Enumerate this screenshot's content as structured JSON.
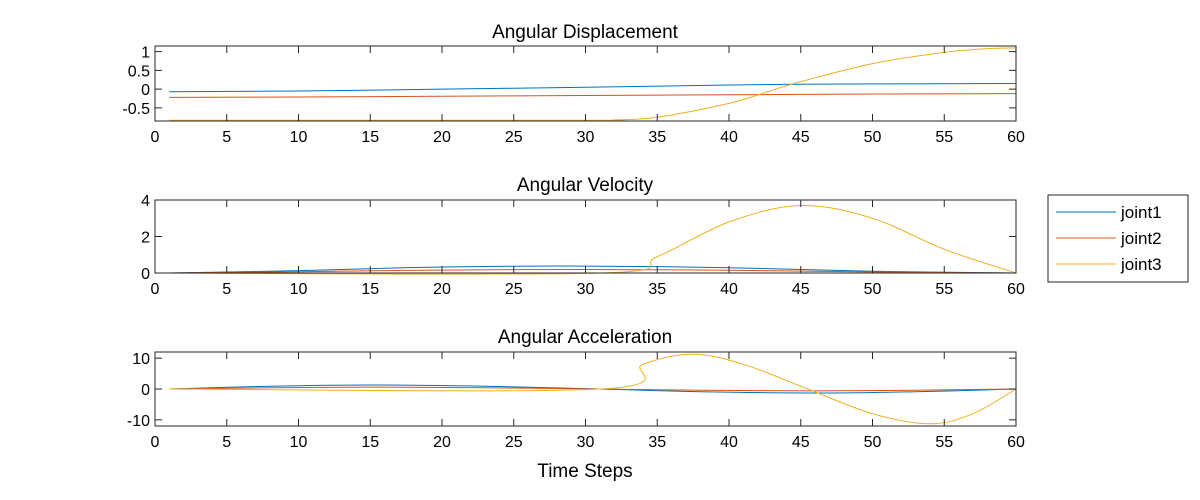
{
  "chart_data": [
    {
      "type": "line",
      "title": "Angular Displacement",
      "xlabel": "",
      "ylabel": "",
      "xlim": [
        0,
        60
      ],
      "ylim": [
        -0.85,
        1.15
      ],
      "x_ticks": [
        0,
        5,
        10,
        15,
        20,
        25,
        30,
        35,
        40,
        45,
        50,
        55,
        60
      ],
      "y_ticks": [
        -0.5,
        0,
        0.5,
        1
      ],
      "y_tick_labels": [
        "-0.5",
        "0",
        "0.5",
        "1"
      ],
      "series": [
        {
          "name": "joint1",
          "x": [
            1,
            10,
            20,
            30,
            40,
            45,
            50,
            60
          ],
          "values": [
            -0.07,
            -0.05,
            0.0,
            0.05,
            0.11,
            0.13,
            0.14,
            0.15
          ]
        },
        {
          "name": "joint2",
          "x": [
            1,
            10,
            20,
            30,
            40,
            50,
            60
          ],
          "values": [
            -0.22,
            -0.21,
            -0.19,
            -0.17,
            -0.15,
            -0.13,
            -0.12
          ]
        },
        {
          "name": "joint3",
          "x": [
            1,
            30,
            32,
            35,
            40,
            43,
            45,
            50,
            55,
            58,
            60
          ],
          "values": [
            -0.83,
            -0.83,
            -0.82,
            -0.75,
            -0.38,
            -0.03,
            0.2,
            0.68,
            0.98,
            1.08,
            1.1
          ]
        }
      ]
    },
    {
      "type": "line",
      "title": "Angular Velocity",
      "xlabel": "",
      "ylabel": "",
      "xlim": [
        0,
        60
      ],
      "ylim": [
        0,
        4
      ],
      "x_ticks": [
        0,
        5,
        10,
        15,
        20,
        25,
        30,
        35,
        40,
        45,
        50,
        55,
        60
      ],
      "y_ticks": [
        0,
        2,
        4
      ],
      "y_tick_labels": [
        "0",
        "2",
        "4"
      ],
      "series": [
        {
          "name": "joint1",
          "x": [
            1,
            10,
            20,
            30,
            40,
            50,
            60
          ],
          "values": [
            0.0,
            0.13,
            0.33,
            0.38,
            0.29,
            0.1,
            0.0
          ]
        },
        {
          "name": "joint2",
          "x": [
            1,
            10,
            20,
            30,
            40,
            50,
            60
          ],
          "values": [
            0.0,
            0.07,
            0.16,
            0.19,
            0.15,
            0.06,
            0.0
          ]
        },
        {
          "name": "joint3",
          "x": [
            1,
            31,
            35,
            40,
            45,
            50,
            55,
            60
          ],
          "values": [
            0.0,
            0.0,
            0.9,
            2.8,
            3.7,
            3.0,
            1.3,
            0.0
          ]
        }
      ]
    },
    {
      "type": "line",
      "title": "Angular Acceleration",
      "xlabel": "Time Steps",
      "ylabel": "",
      "xlim": [
        0,
        60
      ],
      "ylim": [
        -12,
        12
      ],
      "x_ticks": [
        0,
        5,
        10,
        15,
        20,
        25,
        30,
        35,
        40,
        45,
        50,
        55,
        60
      ],
      "y_ticks": [
        -10,
        0,
        10
      ],
      "y_tick_labels": [
        "-10",
        "0",
        "10"
      ],
      "series": [
        {
          "name": "joint1",
          "x": [
            1,
            8,
            15,
            23,
            31,
            38,
            46,
            53,
            60
          ],
          "values": [
            0.0,
            0.9,
            1.3,
            0.9,
            0.0,
            -0.9,
            -1.3,
            -0.9,
            0.0
          ]
        },
        {
          "name": "joint2",
          "x": [
            1,
            8,
            15,
            23,
            31,
            38,
            46,
            53,
            60
          ],
          "values": [
            0.0,
            0.4,
            0.6,
            0.4,
            0.0,
            -0.4,
            -0.6,
            -0.4,
            0.0
          ]
        },
        {
          "name": "joint3",
          "x": [
            1,
            31,
            34,
            37.5,
            41,
            45.5,
            50,
            54,
            57,
            60
          ],
          "values": [
            0.0,
            0.0,
            8.0,
            11.3,
            8.0,
            0.0,
            -8.0,
            -11.3,
            -8.0,
            0.0
          ]
        }
      ]
    }
  ],
  "legend": {
    "placement": "outside-right",
    "entries": [
      "joint1",
      "joint2",
      "joint3"
    ]
  },
  "colors": {
    "joint1": "#0072BD",
    "joint2": "#D95319",
    "joint3": "#EDB120",
    "axis": "#262626"
  }
}
